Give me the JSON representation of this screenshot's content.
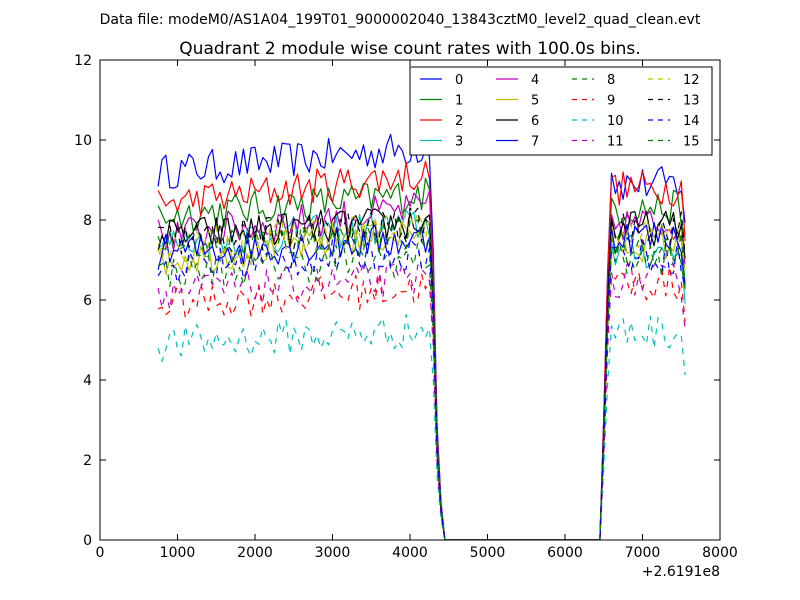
{
  "figure": {
    "suptitle": "Data file: modeM0/AS1A04_199T01_9000002040_13843cztM0_level2_quad_clean.evt"
  },
  "chart_data": {
    "type": "line",
    "title": "Quadrant 2 module wise count rates with 100.0s bins.",
    "xlabel": "",
    "ylabel": "",
    "x_offset_label": "+2.6191e8",
    "xlim": [
      0,
      8000
    ],
    "ylim": [
      0,
      12
    ],
    "xticks": [
      "0",
      "1000",
      "2000",
      "3000",
      "4000",
      "5000",
      "6000",
      "7000",
      "8000"
    ],
    "yticks": [
      "0",
      "2",
      "4",
      "6",
      "8",
      "10",
      "12"
    ],
    "grid": false,
    "legend_position": "top-right",
    "legend_columns": 4,
    "x_segments": {
      "first_start": 750,
      "first_end": 4250,
      "dropoff": [
        4300,
        4350,
        4400,
        4450
      ],
      "gap_end": 6450,
      "rise": [
        6500,
        6550,
        6600
      ],
      "second_start": 6650,
      "second_end": 7550
    },
    "series": [
      {
        "name": "0",
        "color": "#0000ff",
        "dash": "solid",
        "level1": 9.2,
        "level2": 8.9,
        "trend": 0.00018
      },
      {
        "name": "1",
        "color": "#008000",
        "dash": "solid",
        "level1": 8.1,
        "level2": 8.3,
        "trend": 0.00016
      },
      {
        "name": "2",
        "color": "#ff0000",
        "dash": "solid",
        "level1": 8.4,
        "level2": 8.8,
        "trend": 0.00022
      },
      {
        "name": "3",
        "color": "#00bfbf",
        "dash": "solid",
        "level1": 7.4,
        "level2": 7.2,
        "trend": 0.00014
      },
      {
        "name": "4",
        "color": "#bf00bf",
        "dash": "solid",
        "level1": 7.6,
        "level2": 7.9,
        "trend": 0.0002
      },
      {
        "name": "5",
        "color": "#bfbf00",
        "dash": "solid",
        "level1": 7.0,
        "level2": 7.4,
        "trend": 0.00021
      },
      {
        "name": "6",
        "color": "#000000",
        "dash": "solid",
        "level1": 7.6,
        "level2": 7.8,
        "trend": 0.0001
      },
      {
        "name": "7",
        "color": "#0000ff",
        "dash": "solid",
        "level1": 7.2,
        "level2": 7.6,
        "trend": 9e-05
      },
      {
        "name": "8",
        "color": "#008000",
        "dash": "dashed",
        "level1": 6.7,
        "level2": 7.0,
        "trend": 0.0001
      },
      {
        "name": "9",
        "color": "#ff0000",
        "dash": "dashed",
        "level1": 5.9,
        "level2": 6.4,
        "trend": 0.00012
      },
      {
        "name": "10",
        "color": "#00bfbf",
        "dash": "dashed",
        "level1": 4.9,
        "level2": 5.2,
        "trend": 0.0001
      },
      {
        "name": "11",
        "color": "#bf00bf",
        "dash": "dashed",
        "level1": 6.2,
        "level2": 6.5,
        "trend": 0.0001
      },
      {
        "name": "12",
        "color": "#bfbf00",
        "dash": "dashed",
        "level1": 7.3,
        "level2": 7.6,
        "trend": 0.00016
      },
      {
        "name": "13",
        "color": "#000000",
        "dash": "dashed",
        "level1": 7.5,
        "level2": 7.8,
        "trend": 0.00011
      },
      {
        "name": "14",
        "color": "#0000ff",
        "dash": "dashed",
        "level1": 6.8,
        "level2": 7.1,
        "trend": 0.00012
      },
      {
        "name": "15",
        "color": "#008000",
        "dash": "dashed",
        "level1": 7.4,
        "level2": 7.3,
        "trend": 6e-05
      }
    ]
  }
}
